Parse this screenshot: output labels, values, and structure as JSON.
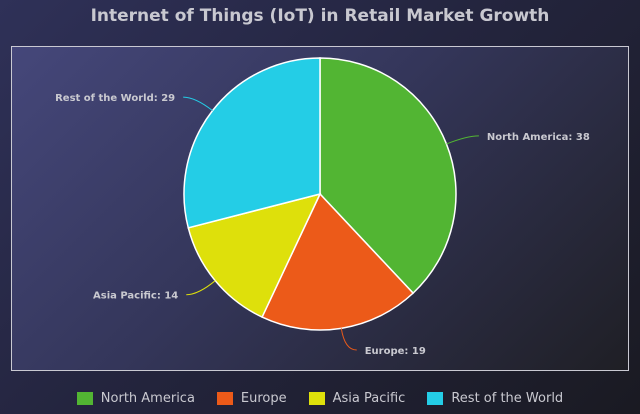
{
  "chart_data": {
    "type": "pie",
    "title": "Internet of Things (IoT) in Retail Market Growth",
    "categories": [
      "North America",
      "Europe",
      "Asia Pacific",
      "Rest of the World"
    ],
    "values": [
      38,
      19,
      14,
      29
    ],
    "colors": [
      "#52b533",
      "#ec5a19",
      "#dee00b",
      "#24cde6"
    ],
    "legend_position": "bottom",
    "label_format": "{name}: {value}"
  }
}
